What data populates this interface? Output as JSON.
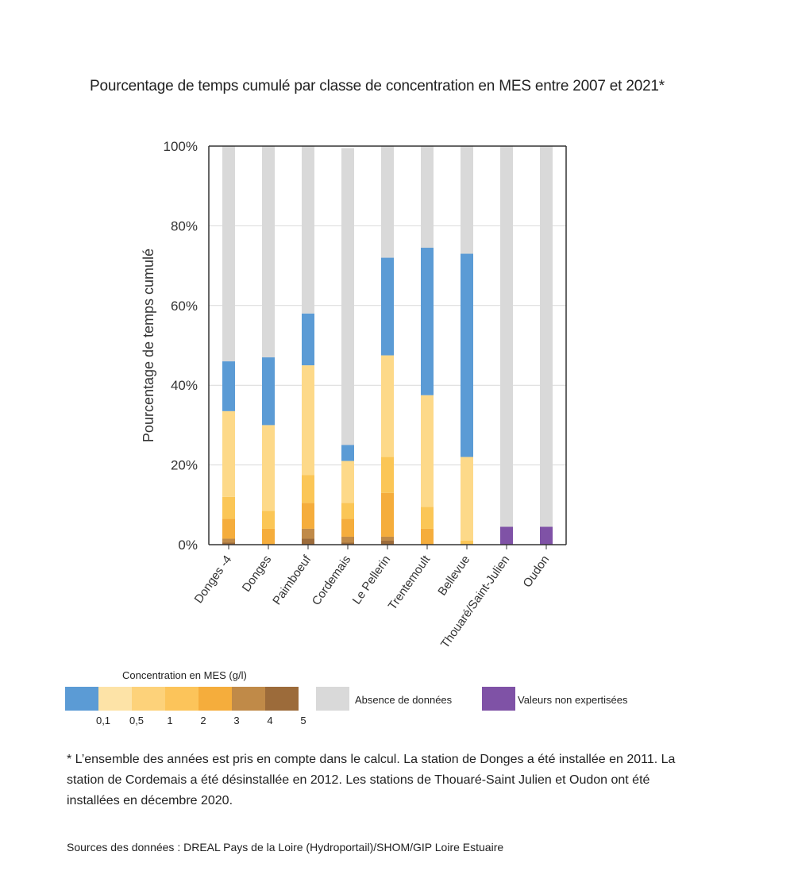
{
  "chart_data": {
    "type": "bar",
    "stacked": true,
    "title": "Pourcentage de temps cumulé par classe de concentration en MES entre 2007 et 2021*",
    "ylabel": "Pourcentage de temps cumulé",
    "ylim": [
      0,
      100
    ],
    "yticks": [
      "0%",
      "20%",
      "40%",
      "60%",
      "80%",
      "100%"
    ],
    "grid": true,
    "categories": [
      "Donges -4",
      "Donges",
      "Paimboeuf",
      "Cordemais",
      "Le Pellerin",
      "Trentemoult",
      "Bellevue",
      "Thouaré/Saint-Julien",
      "Oudon"
    ],
    "series": [
      {
        "key": "c5",
        "color": "#9c6b3a",
        "values": [
          0.5,
          0,
          1.5,
          0.5,
          1.0,
          0,
          0,
          0,
          0
        ]
      },
      {
        "key": "c4",
        "color": "#c08a48",
        "values": [
          1.0,
          0,
          2.5,
          1.5,
          1.0,
          0,
          0,
          0,
          0
        ]
      },
      {
        "key": "c3",
        "color": "#f5ad3c",
        "values": [
          5.0,
          4.0,
          6.5,
          4.5,
          11.0,
          4.0,
          0,
          0,
          0
        ]
      },
      {
        "key": "c2",
        "color": "#fbc656",
        "values": [
          5.5,
          4.5,
          7.0,
          4.0,
          9.0,
          5.5,
          1.0,
          0,
          0
        ]
      },
      {
        "key": "c1",
        "color": "#fdd989",
        "values": [
          21.5,
          21.5,
          27.5,
          10.5,
          25.5,
          28.0,
          21.0,
          0,
          0
        ]
      },
      {
        "key": "c01",
        "color": "#5b9bd5",
        "values": [
          12.5,
          17.0,
          13.0,
          4.0,
          24.5,
          37.0,
          51.0,
          0,
          0
        ]
      },
      {
        "key": "nonexp",
        "color": "#7f52a6",
        "values": [
          0,
          0,
          0,
          0,
          0,
          0,
          0,
          4.5,
          4.5
        ]
      },
      {
        "key": "absence",
        "color": "#d9d9d9",
        "values": [
          54.0,
          53.0,
          42.0,
          74.5,
          28.0,
          25.5,
          27.0,
          95.5,
          95.5
        ]
      }
    ]
  },
  "legend": {
    "title": "Concentration en MES (g/l)",
    "scale_colors": [
      "#5b9bd5",
      "#fde3a7",
      "#fdd27a",
      "#fcc45a",
      "#f5ad3c",
      "#c08a48",
      "#9c6b3a"
    ],
    "scale_labels": [
      "0,1",
      "0,5",
      "1",
      "2",
      "3",
      "4",
      "5"
    ],
    "absence": {
      "label": "Absence de données",
      "color": "#d9d9d9"
    },
    "nonexp": {
      "label": "Valeurs non expertisées",
      "color": "#7f52a6"
    }
  },
  "note": "* L’ensemble des années est pris en compte dans le calcul. La station de Donges a été installée en 2011. La station de Cordemais a été désinstallée en 2012. Les stations de Thouaré-Saint Julien et Oudon ont été installées en décembre 2020.",
  "source": "Sources des données : DREAL Pays de la Loire (Hydroportail)/SHOM/GIP Loire Estuaire"
}
